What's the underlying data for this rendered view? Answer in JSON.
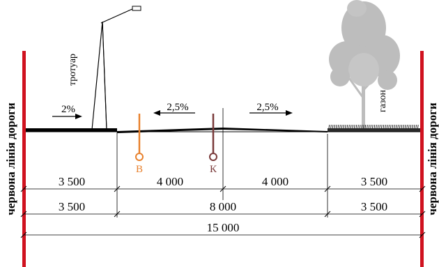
{
  "red_line_label": "червона лінія дороги",
  "sidewalk_label": "тротуар",
  "lawn_label": "газон",
  "slopes": {
    "sidewalk": "2%",
    "left_carriageway": "2,5%",
    "right_carriageway": "2,5%"
  },
  "points": {
    "water": "В",
    "sewer": "К"
  },
  "dimensions": {
    "row1": [
      "3 500",
      "4 000",
      "4 000",
      "3 500"
    ],
    "row2": [
      "3 500",
      "8 000",
      "3 500"
    ],
    "total": "15 000"
  },
  "colors": {
    "red_line": "#d0121f",
    "water": "#e8812d",
    "sewer": "#7a3a3a",
    "tree": "#bdbdbd",
    "lawn": "#2a2a2a"
  }
}
